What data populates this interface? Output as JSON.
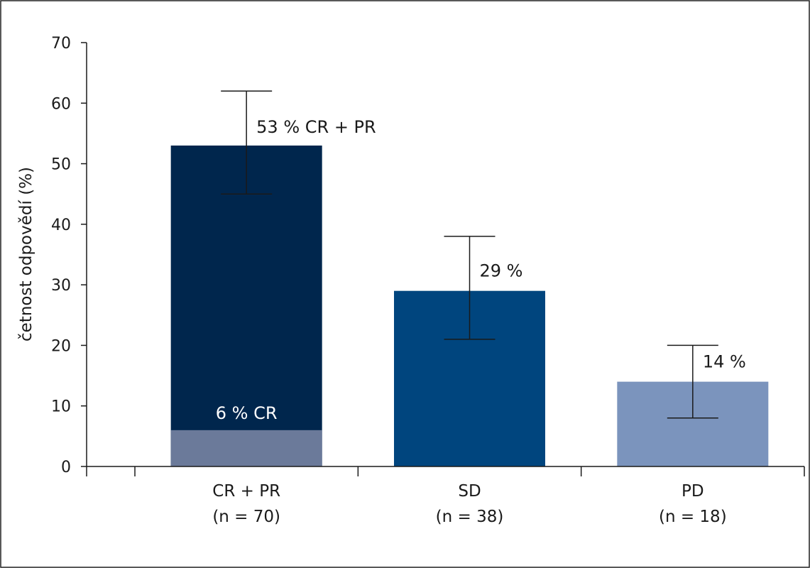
{
  "chart_data": {
    "type": "bar",
    "title": "",
    "xlabel": "",
    "ylabel": "četnost odpovědí (%)",
    "ylim": [
      0,
      70
    ],
    "yticks": [
      0,
      10,
      20,
      30,
      40,
      50,
      60,
      70
    ],
    "grid": false,
    "categories": [
      {
        "label": "CR + PR",
        "sublabel": "(n = 70)"
      },
      {
        "label": "SD",
        "sublabel": "(n = 38)"
      },
      {
        "label": "PD",
        "sublabel": "(n = 18)"
      }
    ],
    "series": [
      {
        "values": [
          53,
          29,
          14
        ],
        "colors": [
          "#00264d",
          "#00457e",
          "#7b94bd"
        ]
      },
      {
        "values": [
          6,
          null,
          null
        ],
        "colors": [
          "#6b7a9a",
          null,
          null
        ]
      }
    ],
    "error_bars": [
      {
        "low": 45,
        "high": 62
      },
      {
        "low": 21,
        "high": 38
      },
      {
        "low": 8,
        "high": 20
      }
    ],
    "annotations": [
      {
        "category": 0,
        "text": "53 % CR + PR"
      },
      {
        "category": 1,
        "text": "29 %"
      },
      {
        "category": 2,
        "text": "14 %"
      },
      {
        "category": 0,
        "text": "6 % CR",
        "inner": true
      }
    ]
  }
}
